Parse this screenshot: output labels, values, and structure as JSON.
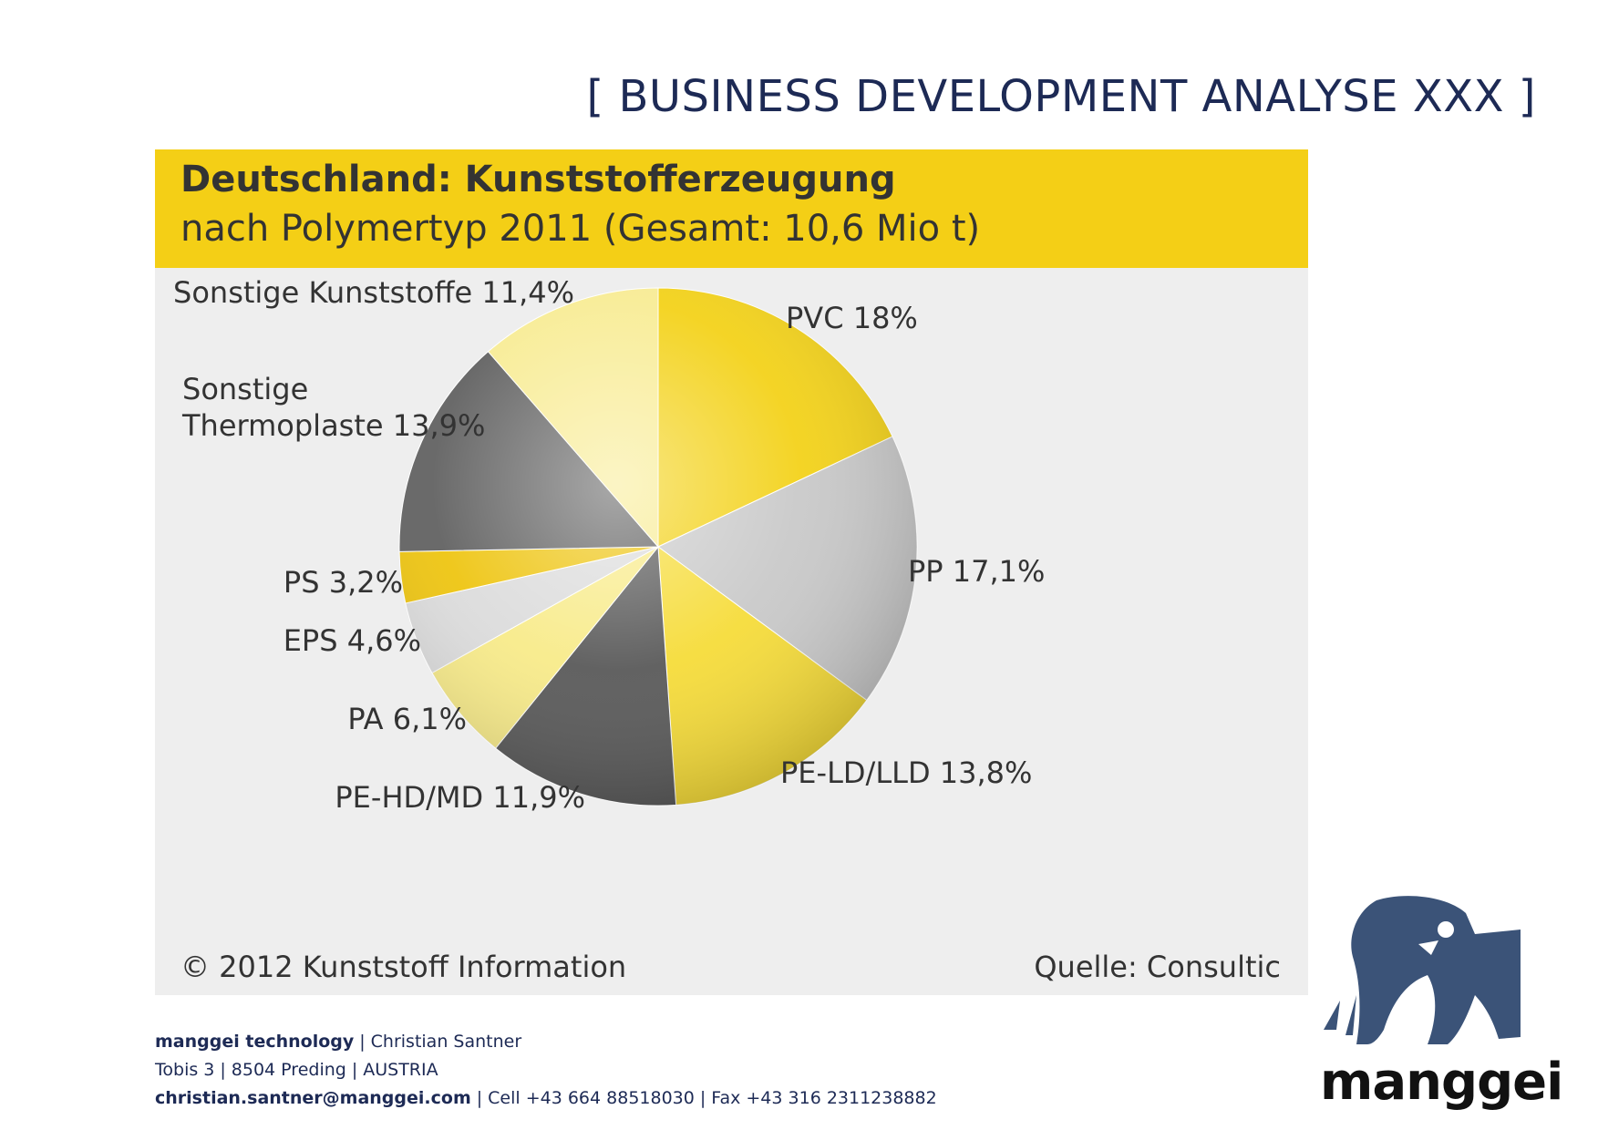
{
  "page": {
    "title": "[ BUSINESS DEVELOPMENT ANALYSE XXX ]"
  },
  "chart_data": {
    "type": "pie",
    "title": "Deutschland: Kunststofferzeugung",
    "subtitle": "nach Polymertyp 2011 (Gesamt: 10,6 Mio t)",
    "unit": "%",
    "slices": [
      {
        "name": "PVC",
        "label": "PVC 18%",
        "value": 18.0,
        "color": "#f3d21a"
      },
      {
        "name": "PP",
        "label": "PP 17,1%",
        "value": 17.1,
        "color": "#c9c9c9"
      },
      {
        "name": "PE-LD/LLD",
        "label": "PE-LD/LLD 13,8%",
        "value": 13.8,
        "color": "#f6dc3a"
      },
      {
        "name": "PE-HD/MD",
        "label": "PE-HD/MD 11,9%",
        "value": 11.9,
        "color": "#5a5a5a"
      },
      {
        "name": "PA",
        "label": "PA 6,1%",
        "value": 6.1,
        "color": "#f8eb8a"
      },
      {
        "name": "EPS",
        "label": "EPS 4,6%",
        "value": 4.6,
        "color": "#dcdcdc"
      },
      {
        "name": "PS",
        "label": "PS 3,2%",
        "value": 3.2,
        "color": "#eec512"
      },
      {
        "name": "Sonstige Thermoplaste",
        "label": "Sonstige Thermoplaste 13,9%",
        "label_lines": [
          "Sonstige",
          "Thermoplaste 13,9%"
        ],
        "value": 13.9,
        "color": "#626262"
      },
      {
        "name": "Sonstige Kunststoffe",
        "label": "Sonstige Kunststoffe 11,4%",
        "value": 11.4,
        "color": "#f8ec95"
      }
    ],
    "copyright": "© 2012 Kunststoff Information",
    "source": "Quelle: Consultic"
  },
  "footer": {
    "company": "manggei technology",
    "person": "Christian Santner",
    "street": "Tobis 3",
    "city": "8504 Preding",
    "country": "AUSTRIA",
    "email": "christian.santner@manggei.com",
    "cell": "Cell +43 664 88518030",
    "fax": "Fax +43 316 2311238882"
  },
  "logo": {
    "text": "manggei",
    "color": "#3b5378"
  }
}
